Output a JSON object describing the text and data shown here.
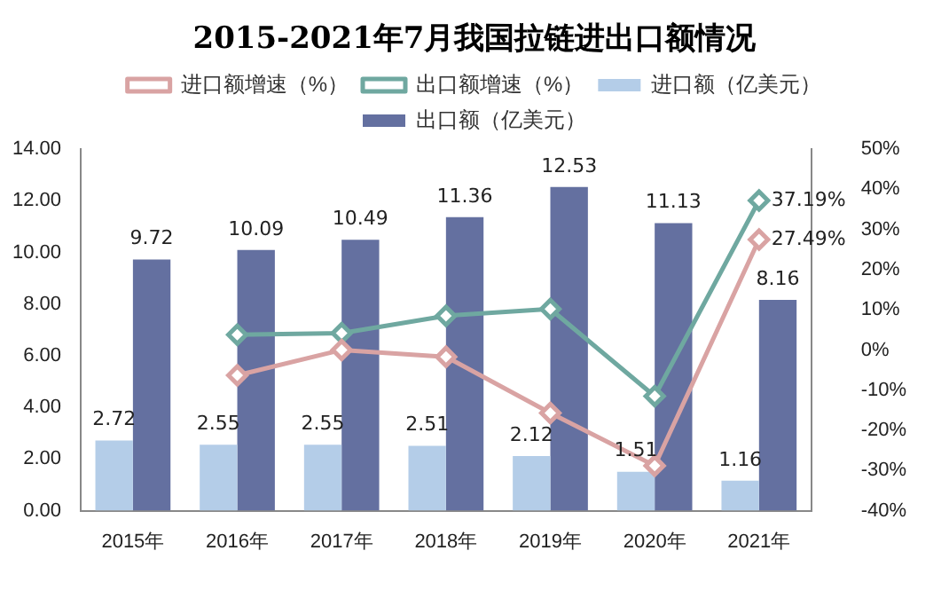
{
  "chart_data": {
    "type": "bar",
    "title": "2015-2021年7月我国拉链进出口额情况",
    "categories": [
      "2015年",
      "2016年",
      "2017年",
      "2018年",
      "2019年",
      "2020年",
      "2021年"
    ],
    "series": [
      {
        "name": "进口额（亿美元）",
        "color": "#b4cde8",
        "values": [
          2.72,
          2.55,
          2.55,
          2.51,
          2.12,
          1.51,
          1.16
        ]
      },
      {
        "name": "出口额（亿美元）",
        "color": "#6470a0",
        "values": [
          9.72,
          10.09,
          10.49,
          11.36,
          12.53,
          11.13,
          8.16
        ]
      },
      {
        "name": "进口额增速（%）",
        "type": "line",
        "axis": "y2",
        "color": "#d9a3a3",
        "marker": "diamond",
        "values": [
          null,
          -6.3,
          0,
          -1.7,
          -15.7,
          -28.8,
          27.49
        ],
        "value_labels": [
          null,
          null,
          null,
          null,
          null,
          null,
          "27.49%"
        ]
      },
      {
        "name": "出口额增速（%）",
        "type": "line",
        "axis": "y2",
        "color": "#6fa8a0",
        "marker": "diamond",
        "values": [
          null,
          3.8,
          4.2,
          8.5,
          10.2,
          -11.5,
          37.19
        ],
        "value_labels": [
          null,
          null,
          null,
          null,
          null,
          null,
          "37.19%"
        ]
      }
    ],
    "data_labels": true,
    "ylim": [
      0,
      14
    ],
    "yticks": [
      {
        "value": 0,
        "label": "0.00"
      },
      {
        "value": 2,
        "label": "2.00"
      },
      {
        "value": 4,
        "label": "4.00"
      },
      {
        "value": 6,
        "label": "6.00"
      },
      {
        "value": 8,
        "label": "8.00"
      },
      {
        "value": 10,
        "label": "10.00"
      },
      {
        "value": 12,
        "label": "12.00"
      },
      {
        "value": 14,
        "label": "14.00"
      }
    ],
    "y2lim": [
      -40,
      50
    ],
    "y2ticks": [
      {
        "value": -40,
        "label": "-40%"
      },
      {
        "value": -30,
        "label": "-30%"
      },
      {
        "value": -20,
        "label": "-20%"
      },
      {
        "value": -10,
        "label": "-10%"
      },
      {
        "value": 0,
        "label": "0%"
      },
      {
        "value": 10,
        "label": "10%"
      },
      {
        "value": 20,
        "label": "20%"
      },
      {
        "value": 30,
        "label": "30%"
      },
      {
        "value": 40,
        "label": "40%"
      },
      {
        "value": 50,
        "label": "50%"
      }
    ],
    "grid": false,
    "legend": "top"
  }
}
